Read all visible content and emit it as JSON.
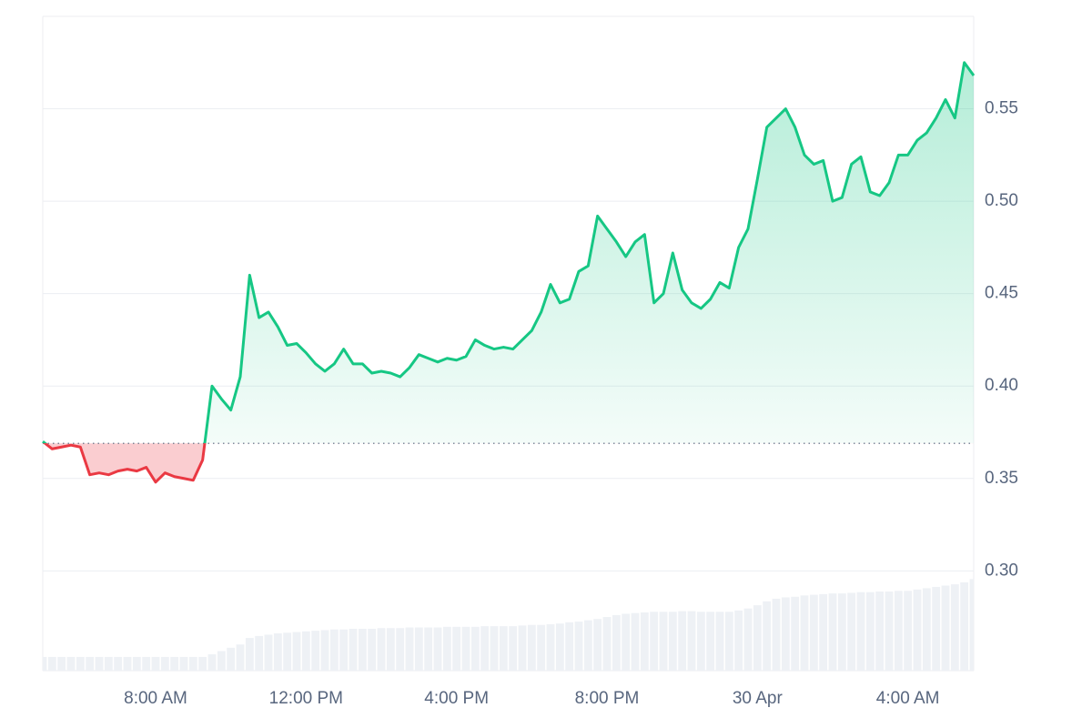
{
  "chart_data": {
    "type": "line",
    "categories": [
      null,
      null,
      null,
      null,
      null,
      null,
      null,
      null,
      null,
      null,
      null,
      null,
      "8:00 AM",
      null,
      null,
      null,
      null,
      null,
      null,
      null,
      null,
      null,
      null,
      null,
      null,
      null,
      null,
      null,
      "12:00 PM",
      null,
      null,
      null,
      null,
      null,
      null,
      null,
      null,
      null,
      null,
      null,
      null,
      null,
      null,
      null,
      "4:00 PM",
      null,
      null,
      null,
      null,
      null,
      null,
      null,
      null,
      null,
      null,
      null,
      null,
      null,
      null,
      null,
      "8:00 PM",
      null,
      null,
      null,
      null,
      null,
      null,
      null,
      null,
      null,
      null,
      null,
      null,
      null,
      null,
      null,
      "30 Apr",
      null,
      null,
      null,
      null,
      null,
      null,
      null,
      null,
      null,
      null,
      null,
      null,
      null,
      null,
      null,
      "4:00 AM",
      null,
      null,
      null,
      null,
      null,
      null,
      null
    ],
    "values": [
      0.37,
      0.366,
      0.367,
      0.368,
      0.367,
      0.352,
      0.353,
      0.352,
      0.354,
      0.355,
      0.354,
      0.356,
      0.348,
      0.353,
      0.351,
      0.35,
      0.349,
      0.36,
      0.4,
      0.393,
      0.387,
      0.405,
      0.46,
      0.437,
      0.44,
      0.432,
      0.422,
      0.423,
      0.418,
      0.412,
      0.408,
      0.412,
      0.42,
      0.412,
      0.412,
      0.407,
      0.408,
      0.407,
      0.405,
      0.41,
      0.417,
      0.415,
      0.413,
      0.415,
      0.414,
      0.416,
      0.425,
      0.422,
      0.42,
      0.421,
      0.42,
      0.425,
      0.43,
      0.44,
      0.455,
      0.445,
      0.447,
      0.462,
      0.465,
      0.492,
      0.485,
      0.478,
      0.47,
      0.478,
      0.482,
      0.445,
      0.45,
      0.472,
      0.452,
      0.445,
      0.442,
      0.447,
      0.456,
      0.453,
      0.475,
      0.485,
      0.512,
      0.54,
      0.545,
      0.55,
      0.54,
      0.525,
      0.52,
      0.522,
      0.5,
      0.502,
      0.52,
      0.524,
      0.505,
      0.503,
      0.51,
      0.525,
      0.525,
      0.533,
      0.537,
      0.545,
      0.555,
      0.545,
      0.575,
      0.568
    ],
    "baseline": 0.369,
    "up_color": "#16c784",
    "down_color": "#ea3943",
    "ylim": [
      0.246,
      0.6
    ],
    "yticks": [
      {
        "value": 0.3,
        "label": "0.30"
      },
      0.35,
      {
        "value": 0.4,
        "label": "0.40"
      },
      0.45,
      {
        "value": 0.5,
        "label": "0.50"
      },
      0.55
    ],
    "grid": true,
    "y2lim": [
      0,
      1
    ],
    "volume": {
      "axis": "y2",
      "color": "#eef1f5",
      "values": [
        0.021,
        0.021,
        0.021,
        0.021,
        0.021,
        0.021,
        0.021,
        0.021,
        0.021,
        0.021,
        0.021,
        0.021,
        0.021,
        0.021,
        0.021,
        0.021,
        0.021,
        0.021,
        0.025,
        0.03,
        0.035,
        0.04,
        0.05,
        0.053,
        0.055,
        0.057,
        0.058,
        0.059,
        0.06,
        0.061,
        0.062,
        0.063,
        0.063,
        0.064,
        0.064,
        0.064,
        0.065,
        0.065,
        0.065,
        0.066,
        0.066,
        0.066,
        0.066,
        0.067,
        0.067,
        0.067,
        0.067,
        0.068,
        0.068,
        0.068,
        0.068,
        0.069,
        0.07,
        0.07,
        0.071,
        0.072,
        0.074,
        0.075,
        0.077,
        0.079,
        0.082,
        0.085,
        0.087,
        0.088,
        0.089,
        0.09,
        0.09,
        0.09,
        0.091,
        0.091,
        0.09,
        0.09,
        0.09,
        0.09,
        0.092,
        0.095,
        0.1,
        0.106,
        0.11,
        0.112,
        0.113,
        0.115,
        0.116,
        0.117,
        0.118,
        0.118,
        0.119,
        0.12,
        0.12,
        0.121,
        0.121,
        0.122,
        0.122,
        0.124,
        0.126,
        0.128,
        0.13,
        0.132,
        0.135,
        0.14
      ]
    }
  }
}
